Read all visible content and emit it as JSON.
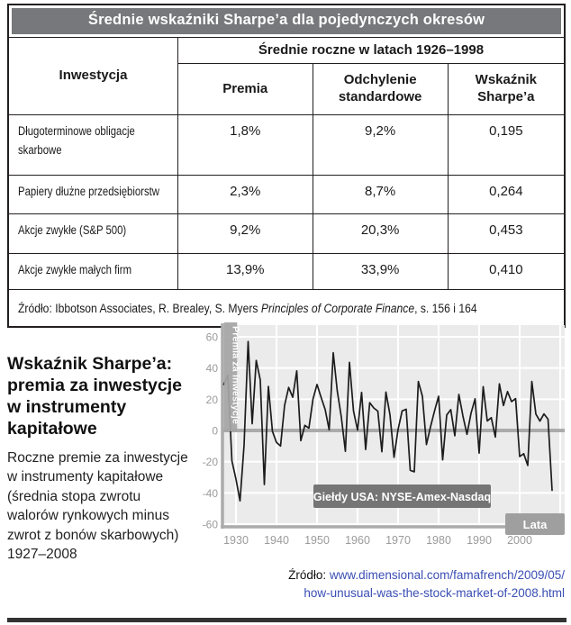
{
  "table": {
    "title": "Średnie wskaźniki Sharpe’a dla pojedynczych okresów",
    "col_group_header": "Średnie roczne w latach 1926–1998",
    "col1_header": "Inwestycja",
    "columns": [
      "Premia",
      "Odchylenie standardowe",
      "Wskaźnik Sharpe’a"
    ],
    "rows": [
      {
        "label": "Długoterminowe obligacje skarbowe",
        "premia": "1,8%",
        "odchylenie": "9,2%",
        "wskaznik": "0,195"
      },
      {
        "label": "Papiery dłużne przedsiębiorstw",
        "premia": "2,3%",
        "odchylenie": "8,7%",
        "wskaznik": "0,264"
      },
      {
        "label": "Akcje zwykłe (S&P 500)",
        "premia": "9,2%",
        "odchylenie": "20,3%",
        "wskaznik": "0,453"
      },
      {
        "label": "Akcje zwykłe małych firm",
        "premia": "13,9%",
        "odchylenie": "33,9%",
        "wskaznik": "0,410"
      }
    ],
    "source_prefix": "Źródło: Ibbotson Associates, R. Brealey, S. Myers ",
    "source_italic": "Principles of Corporate Finance",
    "source_suffix": ", s. 156 i 164"
  },
  "figure": {
    "heading": [
      "Wskaźnik Sharpe’a:",
      "premia za inwestycje",
      "w instrumenty",
      "kapitałowe"
    ],
    "description": [
      "Roczne premie za inwestycje",
      "w instrumenty kapitałowe",
      "(średnia stopa zwrotu",
      "walorów rynkowych minus",
      "zwrot z bonów skarbowych)",
      "1927–2008"
    ],
    "source_label": "Źródło: ",
    "source_link_line1": "www.dimensional.com/famafrench/2009/05/",
    "source_link_line2": "how-unusual-was-the-stock-market-of-2008.html"
  },
  "chart_data": {
    "type": "line",
    "title": "",
    "ylabel": "Premia za inwestycje",
    "xlabel": "Lata",
    "annotation": "Giełdy USA: NYSE-Amex-Nasdaq",
    "grid": true,
    "ylim": [
      -60,
      65
    ],
    "y_ticks": [
      60,
      40,
      20,
      0,
      -20,
      -40,
      -60
    ],
    "y_tick_labels": [
      "60",
      "40",
      "20",
      "0",
      "–20",
      "–40",
      "–60"
    ],
    "x_ticks": [
      1930,
      1940,
      1950,
      1960,
      1970,
      1980,
      1990,
      2000
    ],
    "x_range": [
      1927,
      2008
    ],
    "x_interval": 1,
    "values": [
      29.5,
      35.4,
      -19.5,
      -31.2,
      -45.1,
      -9.4,
      57.0,
      4.3,
      44.9,
      32.3,
      -34.6,
      28.2,
      -0.5,
      -7.7,
      -10.0,
      16.1,
      27.6,
      21.3,
      38.2,
      -6.5,
      3.3,
      1.5,
      20.1,
      29.5,
      21.3,
      13.5,
      0.4,
      49.8,
      25.2,
      8.5,
      -13.3,
      43.7,
      12.5,
      0.3,
      24.4,
      -12.2,
      17.8,
      14.4,
      12.4,
      -13.6,
      24.6,
      10.1,
      -17.2,
      0.7,
      12.5,
      13.6,
      -25.5,
      -26.5,
      31.4,
      21.9,
      -9.0,
      2.3,
      12.6,
      21.9,
      -18.8,
      9.9,
      13.3,
      -3.4,
      23.1,
      9.3,
      -2.5,
      11.1,
      20.3,
      -14.5,
      28.1,
      6.1,
      8.2,
      -4.2,
      29.9,
      16.0,
      24.9,
      18.5,
      20.4,
      -16.7,
      -14.9,
      -22.4,
      31.4,
      10.5,
      6.0,
      10.6,
      7.2,
      -38.3
    ]
  },
  "colors": {
    "table_header_bg": "#77787b",
    "table_border": "#231f20",
    "link": "#3a4eb4",
    "plot_bg": "#ebebeb",
    "grid": "#ffffff",
    "axis": "#ababab",
    "line": "#1c1c1c",
    "tick_label": "#9b9b9b",
    "ylabel_bar": "#a5a5a5",
    "annotation_bg": "#757575",
    "xlabel_bg": "#9f9f9f",
    "divider": "#333333"
  }
}
